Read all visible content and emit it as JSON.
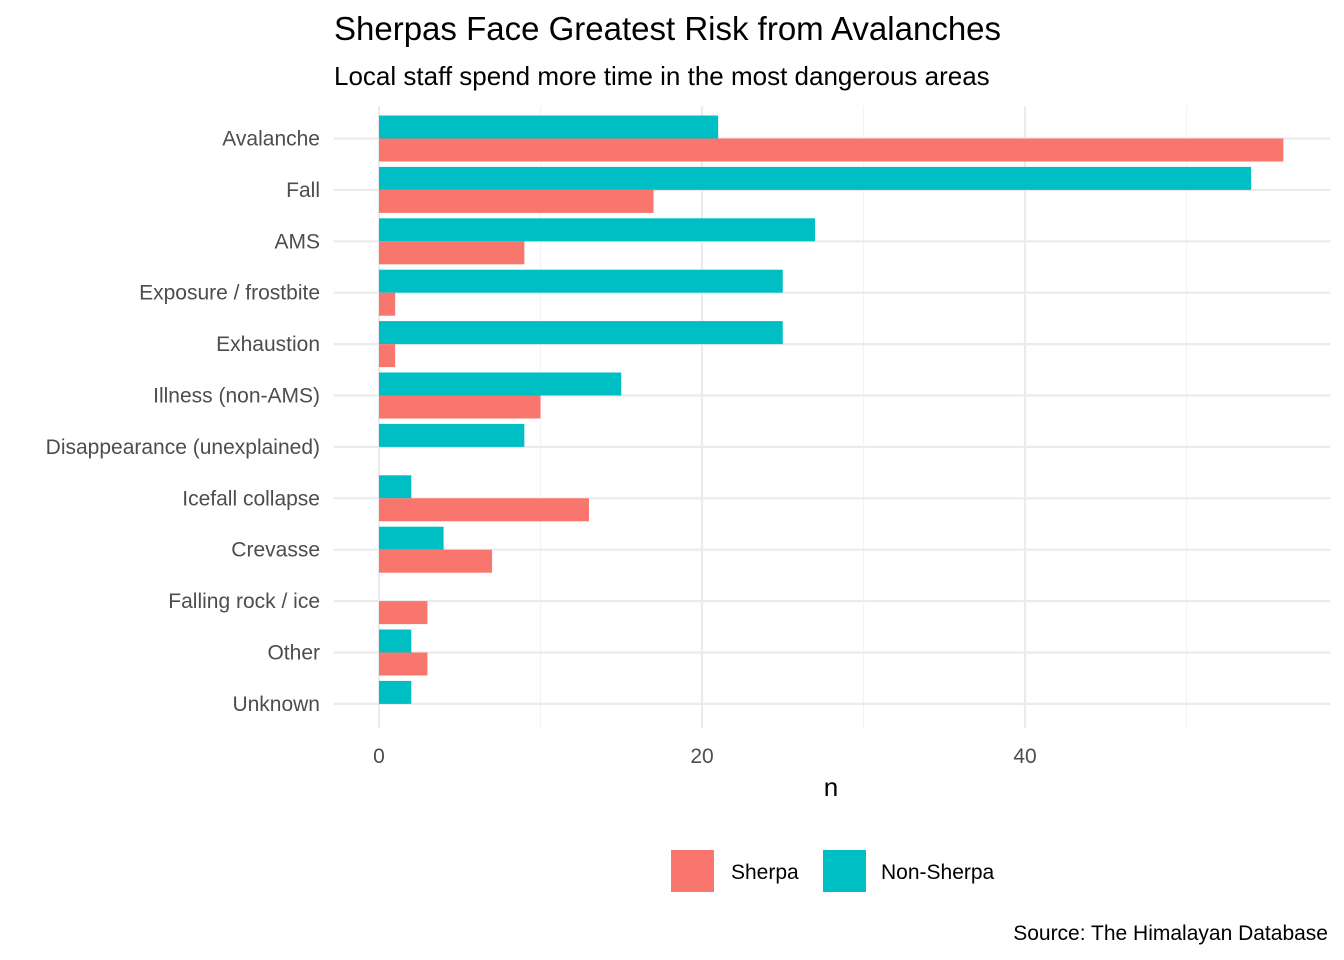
{
  "chart_data": {
    "type": "bar",
    "orientation": "horizontal",
    "title": "Sherpas Face Greatest Risk from Avalanches",
    "subtitle": "Local staff spend more time in the most dangerous areas",
    "caption": "Source: The Himalayan Database",
    "xlabel": "n",
    "ylabel": "",
    "xlim": [
      0,
      59
    ],
    "xticks": [
      0,
      20,
      40
    ],
    "grid": true,
    "legend_position": "bottom",
    "categories": [
      "Avalanche",
      "Fall",
      "AMS",
      "Exposure / frostbite",
      "Exhaustion",
      "Illness (non-AMS)",
      "Disappearance (unexplained)",
      "Icefall collapse",
      "Crevasse",
      "Falling rock / ice",
      "Other",
      "Unknown"
    ],
    "series": [
      {
        "name": "Sherpa",
        "color": "#F8766D",
        "values": [
          56,
          17,
          9,
          1,
          1,
          10,
          0,
          13,
          7,
          3,
          3,
          0
        ]
      },
      {
        "name": "Non-Sherpa",
        "color": "#00BFC4",
        "values": [
          21,
          54,
          27,
          25,
          25,
          15,
          9,
          2,
          4,
          0,
          2,
          2
        ]
      }
    ]
  }
}
